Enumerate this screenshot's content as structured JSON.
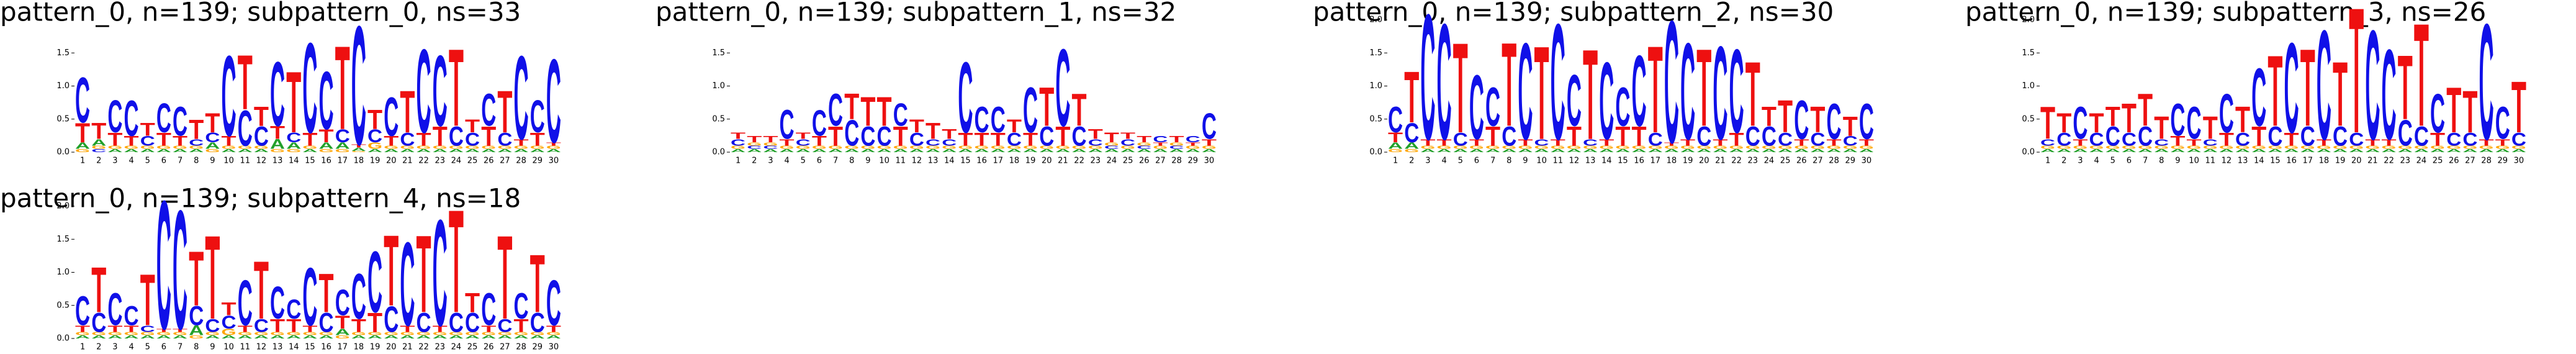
{
  "chart_data": [
    {
      "type": "logo",
      "title": "pattern_0, n=139; subpattern_0, ns=33",
      "categories": [
        1,
        2,
        3,
        4,
        5,
        6,
        7,
        8,
        9,
        10,
        11,
        12,
        13,
        14,
        15,
        16,
        17,
        18,
        19,
        20,
        21,
        22,
        23,
        24,
        25,
        26,
        27,
        28,
        29,
        30
      ],
      "ylim": [
        0,
        2
      ],
      "yticks": [
        {
          "value": 0,
          "label": "0.0"
        },
        {
          "value": 0.5,
          "label": "0.5"
        },
        {
          "value": 1,
          "label": "1.0"
        },
        {
          "value": 1.5,
          "label": "1.5"
        }
      ],
      "series": [
        {
          "name": "A",
          "color": "#22a02a",
          "values": [
            0.1,
            0.1,
            0.05,
            0.05,
            0.05,
            0.05,
            0.05,
            0.05,
            0.1,
            0.05,
            0.05,
            0.05,
            0.15,
            0.1,
            0.05,
            0.1,
            0.1,
            0.05,
            0.05,
            0.05,
            0.05,
            0.05,
            0.05,
            0.05,
            0.05,
            0.05,
            0.05,
            0.05,
            0.05,
            0.05
          ]
        },
        {
          "name": "C",
          "color": "#1010e8",
          "values": [
            0.7,
            0.05,
            0.5,
            0.55,
            0.15,
            0.45,
            0.45,
            0.1,
            0.15,
            1.25,
            0.55,
            0.3,
            1.0,
            0.15,
            1.4,
            0.9,
            0.2,
            1.85,
            0.2,
            0.6,
            0.2,
            1.3,
            1.1,
            0.3,
            0.2,
            0.5,
            0.2,
            1.3,
            0.5,
            1.3
          ]
        },
        {
          "name": "G",
          "color": "#ffa500",
          "values": [
            0.05,
            0.05,
            0.05,
            0.05,
            0.05,
            0.05,
            0.05,
            0.05,
            0.05,
            0.05,
            0.05,
            0.05,
            0.05,
            0.05,
            0.05,
            0.05,
            0.05,
            0.02,
            0.1,
            0.05,
            0.05,
            0.05,
            0.05,
            0.05,
            0.05,
            0.05,
            0.05,
            0.05,
            0.05,
            0.05
          ]
        },
        {
          "name": "T",
          "color": "#ee1010",
          "values": [
            0.3,
            0.25,
            0.2,
            0.15,
            0.2,
            0.2,
            0.15,
            0.3,
            0.3,
            0.15,
            0.85,
            0.3,
            0.2,
            0.95,
            0.2,
            0.2,
            1.3,
            0.05,
            0.3,
            0.15,
            0.65,
            0.2,
            0.3,
            1.2,
            0.2,
            0.3,
            0.65,
            0.1,
            0.2,
            0.05
          ]
        }
      ]
    },
    {
      "type": "logo",
      "title": "pattern_0, n=139; subpattern_1, ns=32",
      "categories": [
        1,
        2,
        3,
        4,
        5,
        6,
        7,
        8,
        9,
        10,
        11,
        12,
        13,
        14,
        15,
        16,
        17,
        18,
        19,
        20,
        21,
        22,
        23,
        24,
        25,
        26,
        27,
        28,
        29,
        30
      ],
      "ylim": [
        0,
        2
      ],
      "yticks": [
        {
          "value": 0,
          "label": "0.0"
        },
        {
          "value": 0.5,
          "label": "0.5"
        },
        {
          "value": 1,
          "label": "1.0"
        },
        {
          "value": 1.5,
          "label": "1.5"
        }
      ],
      "series": [
        {
          "name": "A",
          "color": "#22a02a",
          "values": [
            0.05,
            0.05,
            0.05,
            0.05,
            0.05,
            0.05,
            0.05,
            0.05,
            0.05,
            0.05,
            0.05,
            0.05,
            0.05,
            0.05,
            0.05,
            0.05,
            0.05,
            0.05,
            0.05,
            0.05,
            0.05,
            0.05,
            0.05,
            0.05,
            0.05,
            0.05,
            0.05,
            0.05,
            0.05,
            0.05
          ]
        },
        {
          "name": "C",
          "color": "#1010e8",
          "values": [
            0.1,
            0.05,
            0.05,
            0.45,
            0.1,
            0.4,
            0.5,
            0.4,
            0.3,
            0.3,
            0.35,
            0.2,
            0.1,
            0.1,
            1.1,
            0.4,
            0.4,
            0.2,
            0.7,
            0.3,
            1.2,
            0.3,
            0.1,
            0.05,
            0.1,
            0.05,
            0.1,
            0.05,
            0.1,
            0.4
          ]
        },
        {
          "name": "G",
          "color": "#ffa500",
          "values": [
            0.05,
            0.05,
            0.05,
            0.05,
            0.05,
            0.05,
            0.05,
            0.05,
            0.05,
            0.05,
            0.05,
            0.05,
            0.05,
            0.05,
            0.05,
            0.05,
            0.05,
            0.05,
            0.05,
            0.05,
            0.05,
            0.05,
            0.05,
            0.05,
            0.05,
            0.05,
            0.05,
            0.05,
            0.05,
            0.05
          ]
        },
        {
          "name": "T",
          "color": "#ee1010",
          "values": [
            0.1,
            0.1,
            0.1,
            0.1,
            0.1,
            0.15,
            0.3,
            0.4,
            0.45,
            0.45,
            0.3,
            0.2,
            0.25,
            0.15,
            0.2,
            0.2,
            0.2,
            0.2,
            0.2,
            0.6,
            0.3,
            0.5,
            0.15,
            0.15,
            0.1,
            0.1,
            0.05,
            0.1,
            0.05,
            0.1
          ]
        }
      ]
    },
    {
      "type": "logo",
      "title": "pattern_0, n=139; subpattern_2, ns=30",
      "categories": [
        1,
        2,
        3,
        4,
        5,
        6,
        7,
        8,
        9,
        10,
        11,
        12,
        13,
        14,
        15,
        16,
        17,
        18,
        19,
        20,
        21,
        22,
        23,
        24,
        25,
        26,
        27,
        28,
        29,
        30
      ],
      "ylim": [
        0,
        2
      ],
      "yticks": [
        {
          "value": 0,
          "label": "0.0"
        },
        {
          "value": 0.5,
          "label": "0.5"
        },
        {
          "value": 1,
          "label": "1.0"
        },
        {
          "value": 1.5,
          "label": "1.5"
        },
        {
          "value": 2,
          "label": "2.0"
        }
      ],
      "series": [
        {
          "name": "A",
          "color": "#22a02a",
          "values": [
            0.1,
            0.1,
            0.05,
            0.05,
            0.05,
            0.05,
            0.05,
            0.05,
            0.05,
            0.05,
            0.05,
            0.05,
            0.05,
            0.05,
            0.05,
            0.05,
            0.05,
            0.05,
            0.05,
            0.05,
            0.05,
            0.05,
            0.05,
            0.05,
            0.05,
            0.05,
            0.05,
            0.05,
            0.05,
            0.05
          ]
        },
        {
          "name": "C",
          "color": "#1010e8",
          "values": [
            0.4,
            0.3,
            1.95,
            1.8,
            0.2,
            1.0,
            0.6,
            0.3,
            1.5,
            0.1,
            1.8,
            0.8,
            0.1,
            1.2,
            0.6,
            1.1,
            0.2,
            1.9,
            1.5,
            0.3,
            1.45,
            1.3,
            0.3,
            0.3,
            0.2,
            0.6,
            0.2,
            0.55,
            0.15,
            0.55
          ]
        },
        {
          "name": "G",
          "color": "#ffa500",
          "values": [
            0.05,
            0.05,
            0.05,
            0.05,
            0.05,
            0.05,
            0.05,
            0.05,
            0.05,
            0.05,
            0.05,
            0.05,
            0.05,
            0.05,
            0.05,
            0.05,
            0.05,
            0.05,
            0.05,
            0.05,
            0.05,
            0.05,
            0.05,
            0.05,
            0.05,
            0.05,
            0.05,
            0.05,
            0.05,
            0.05
          ]
        },
        {
          "name": "T",
          "color": "#ee1010",
          "values": [
            0.15,
            0.8,
            0.1,
            0.1,
            1.4,
            0.1,
            0.3,
            1.3,
            0.1,
            1.45,
            0.1,
            0.3,
            1.4,
            0.1,
            0.3,
            0.3,
            1.35,
            0.05,
            0.1,
            1.2,
            0.1,
            0.2,
            1.0,
            0.3,
            0.5,
            0.1,
            0.4,
            0.1,
            0.3,
            0.1
          ]
        }
      ]
    },
    {
      "type": "logo",
      "title": "pattern_0, n=139; subpattern_3, ns=26",
      "categories": [
        1,
        2,
        3,
        4,
        5,
        6,
        7,
        8,
        9,
        10,
        11,
        12,
        13,
        14,
        15,
        16,
        17,
        18,
        19,
        20,
        21,
        22,
        23,
        24,
        25,
        26,
        27,
        28,
        29,
        30
      ],
      "ylim": [
        0,
        2
      ],
      "yticks": [
        {
          "value": 0,
          "label": "0.0"
        },
        {
          "value": 0.5,
          "label": "0.5"
        },
        {
          "value": 1,
          "label": "1.0"
        },
        {
          "value": 1.5,
          "label": "1.5"
        },
        {
          "value": 2,
          "label": "2.0"
        }
      ],
      "series": [
        {
          "name": "A",
          "color": "#22a02a",
          "values": [
            0.05,
            0.05,
            0.05,
            0.05,
            0.05,
            0.05,
            0.05,
            0.05,
            0.05,
            0.05,
            0.05,
            0.05,
            0.05,
            0.05,
            0.05,
            0.05,
            0.05,
            0.05,
            0.05,
            0.05,
            0.05,
            0.05,
            0.05,
            0.05,
            0.05,
            0.05,
            0.05,
            0.05,
            0.05,
            0.05
          ]
        },
        {
          "name": "C",
          "color": "#1010e8",
          "values": [
            0.1,
            0.2,
            0.5,
            0.2,
            0.3,
            0.2,
            0.3,
            0.1,
            0.5,
            0.5,
            0.1,
            0.6,
            0.2,
            0.9,
            0.3,
            1.4,
            0.3,
            1.7,
            0.3,
            0.2,
            1.7,
            1.4,
            0.4,
            0.3,
            0.6,
            0.2,
            0.2,
            1.8,
            0.5,
            0.2
          ]
        },
        {
          "name": "G",
          "color": "#ffa500",
          "values": [
            0.05,
            0.05,
            0.05,
            0.05,
            0.05,
            0.05,
            0.05,
            0.05,
            0.05,
            0.05,
            0.05,
            0.05,
            0.05,
            0.05,
            0.05,
            0.05,
            0.05,
            0.05,
            0.05,
            0.05,
            0.05,
            0.05,
            0.05,
            0.05,
            0.05,
            0.05,
            0.05,
            0.05,
            0.05,
            0.05
          ]
        },
        {
          "name": "T",
          "color": "#ee1010",
          "values": [
            0.5,
            0.3,
            0.1,
            0.3,
            0.3,
            0.45,
            0.5,
            0.35,
            0.15,
            0.1,
            0.35,
            0.2,
            0.4,
            0.3,
            1.1,
            0.2,
            1.2,
            0.1,
            1.0,
            1.95,
            0.1,
            0.1,
            1.0,
            1.6,
            0.2,
            0.7,
            0.65,
            0.1,
            0.1,
            0.8
          ]
        }
      ]
    },
    {
      "type": "logo",
      "title": "pattern_0, n=139; subpattern_4, ns=18",
      "categories": [
        1,
        2,
        3,
        4,
        5,
        6,
        7,
        8,
        9,
        10,
        11,
        12,
        13,
        14,
        15,
        16,
        17,
        18,
        19,
        20,
        21,
        22,
        23,
        24,
        25,
        26,
        27,
        28,
        29,
        30
      ],
      "ylim": [
        0,
        2
      ],
      "yticks": [
        {
          "value": 0,
          "label": "0.0"
        },
        {
          "value": 0.5,
          "label": "0.5"
        },
        {
          "value": 1,
          "label": "1.0"
        },
        {
          "value": 1.5,
          "label": "1.5"
        },
        {
          "value": 2,
          "label": "2.0"
        }
      ],
      "series": [
        {
          "name": "A",
          "color": "#22a02a",
          "values": [
            0.05,
            0.05,
            0.05,
            0.05,
            0.05,
            0.05,
            0.05,
            0.15,
            0.05,
            0.05,
            0.05,
            0.05,
            0.05,
            0.05,
            0.05,
            0.05,
            0.1,
            0.05,
            0.05,
            0.05,
            0.05,
            0.05,
            0.05,
            0.05,
            0.05,
            0.05,
            0.05,
            0.05,
            0.05,
            0.05
          ]
        },
        {
          "name": "C",
          "color": "#1010e8",
          "values": [
            0.45,
            0.3,
            0.5,
            0.3,
            0.1,
            2.0,
            1.85,
            0.3,
            0.2,
            0.2,
            0.7,
            0.2,
            0.5,
            0.3,
            0.9,
            0.3,
            0.4,
            0.7,
            0.95,
            0.4,
            1.3,
            0.3,
            1.65,
            0.3,
            0.3,
            0.5,
            0.2,
            0.4,
            0.3,
            0.7
          ]
        },
        {
          "name": "G",
          "color": "#ffa500",
          "values": [
            0.05,
            0.05,
            0.05,
            0.05,
            0.05,
            0.05,
            0.05,
            0.05,
            0.05,
            0.1,
            0.05,
            0.05,
            0.05,
            0.05,
            0.05,
            0.05,
            0.05,
            0.05,
            0.05,
            0.05,
            0.05,
            0.05,
            0.05,
            0.05,
            0.05,
            0.05,
            0.05,
            0.05,
            0.05,
            0.05
          ]
        },
        {
          "name": "T",
          "color": "#ee1010",
          "values": [
            0.1,
            0.7,
            0.1,
            0.1,
            0.8,
            0.05,
            0.05,
            0.85,
            1.3,
            0.2,
            0.1,
            0.9,
            0.2,
            0.2,
            0.1,
            0.6,
            0.2,
            0.2,
            0.3,
            1.1,
            0.1,
            1.2,
            0.1,
            1.6,
            0.3,
            0.1,
            1.3,
            0.2,
            0.9,
            0.1
          ]
        }
      ]
    }
  ]
}
